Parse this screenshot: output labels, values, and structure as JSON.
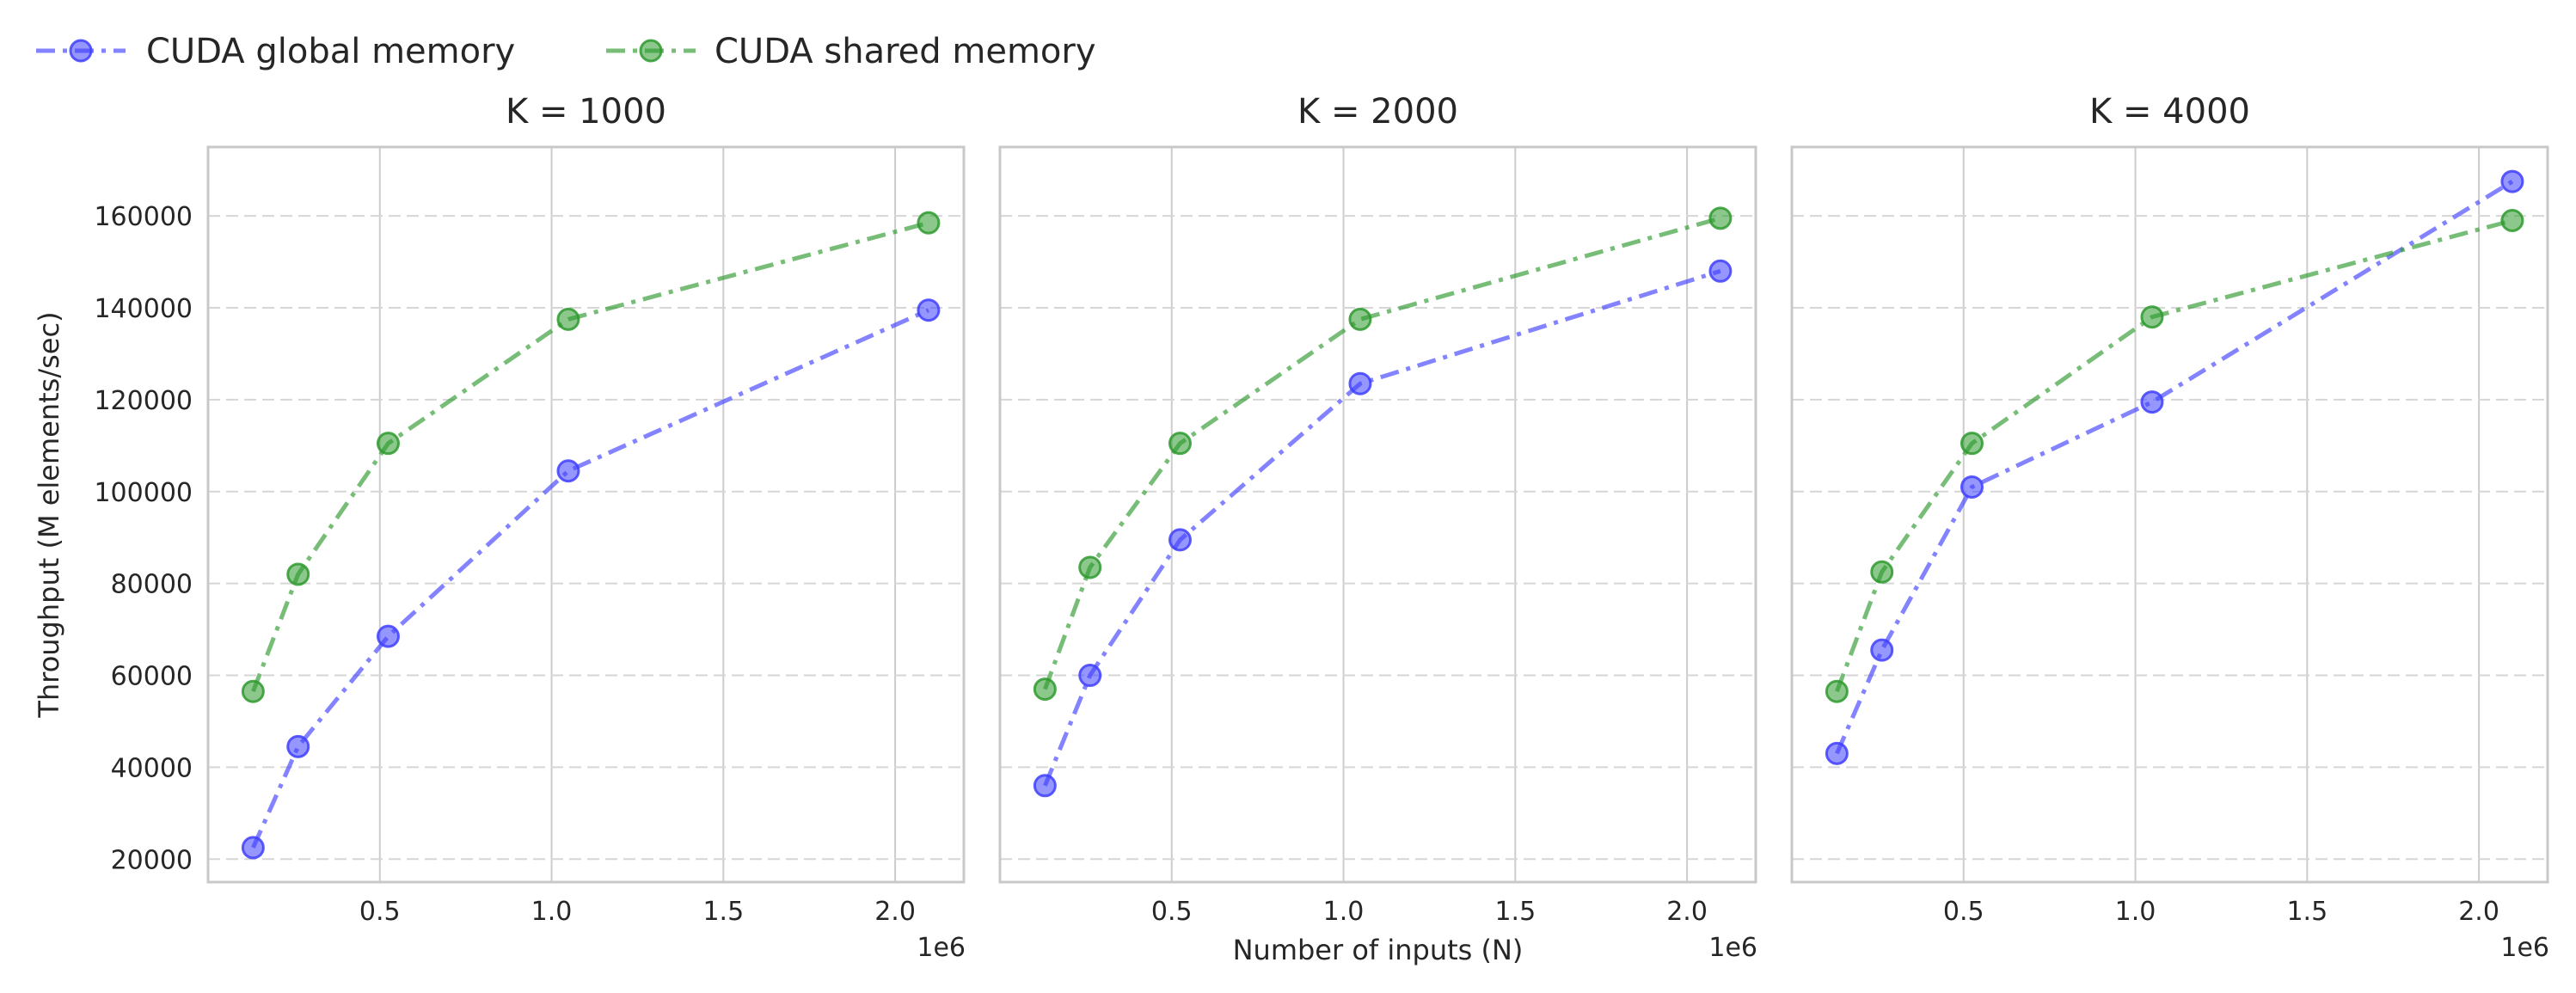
{
  "legend": {
    "items": [
      {
        "label": "CUDA global memory",
        "color": "#4040ff"
      },
      {
        "label": "CUDA shared memory",
        "color": "#2e9a2e"
      }
    ]
  },
  "chart_data": [
    {
      "type": "line",
      "title": "K = 1000",
      "xlabel": "",
      "ylabel": "Throughput (M elements/sec)",
      "x_multiplier_label": "1e6",
      "x": [
        131072,
        262144,
        524288,
        1048576,
        2097152
      ],
      "xlim": [
        0,
        2200000
      ],
      "ylim": [
        15000,
        175000
      ],
      "xticks": [
        500000,
        1000000,
        1500000,
        2000000
      ],
      "xtick_labels": [
        "0.5",
        "1.0",
        "1.5",
        "2.0"
      ],
      "yticks": [
        20000,
        40000,
        60000,
        80000,
        100000,
        120000,
        140000,
        160000
      ],
      "ytick_labels": [
        "20000",
        "40000",
        "60000",
        "80000",
        "100000",
        "120000",
        "140000",
        "160000"
      ],
      "series": [
        {
          "name": "CUDA global memory",
          "color": "#4040ff",
          "values": [
            22500,
            44500,
            68500,
            104500,
            139500
          ]
        },
        {
          "name": "CUDA shared memory",
          "color": "#2e9a2e",
          "values": [
            56500,
            82000,
            110500,
            137500,
            158500
          ]
        }
      ]
    },
    {
      "type": "line",
      "title": "K = 2000",
      "xlabel": "Number of inputs (N)",
      "ylabel": "",
      "x_multiplier_label": "1e6",
      "x": [
        131072,
        262144,
        524288,
        1048576,
        2097152
      ],
      "xlim": [
        0,
        2200000
      ],
      "ylim": [
        15000,
        175000
      ],
      "xticks": [
        500000,
        1000000,
        1500000,
        2000000
      ],
      "xtick_labels": [
        "0.5",
        "1.0",
        "1.5",
        "2.0"
      ],
      "yticks": [
        20000,
        40000,
        60000,
        80000,
        100000,
        120000,
        140000,
        160000
      ],
      "ytick_labels": [],
      "series": [
        {
          "name": "CUDA global memory",
          "color": "#4040ff",
          "values": [
            36000,
            60000,
            89500,
            123500,
            148000
          ]
        },
        {
          "name": "CUDA shared memory",
          "color": "#2e9a2e",
          "values": [
            57000,
            83500,
            110500,
            137500,
            159500
          ]
        }
      ]
    },
    {
      "type": "line",
      "title": "K = 4000",
      "xlabel": "",
      "ylabel": "",
      "x_multiplier_label": "1e6",
      "x": [
        131072,
        262144,
        524288,
        1048576,
        2097152
      ],
      "xlim": [
        0,
        2200000
      ],
      "ylim": [
        15000,
        175000
      ],
      "xticks": [
        500000,
        1000000,
        1500000,
        2000000
      ],
      "xtick_labels": [
        "0.5",
        "1.0",
        "1.5",
        "2.0"
      ],
      "yticks": [
        20000,
        40000,
        60000,
        80000,
        100000,
        120000,
        140000,
        160000
      ],
      "ytick_labels": [],
      "series": [
        {
          "name": "CUDA global memory",
          "color": "#4040ff",
          "values": [
            43000,
            65500,
            101000,
            119500,
            167500
          ]
        },
        {
          "name": "CUDA shared memory",
          "color": "#2e9a2e",
          "values": [
            56500,
            82500,
            110500,
            138000,
            159000
          ]
        }
      ]
    }
  ]
}
